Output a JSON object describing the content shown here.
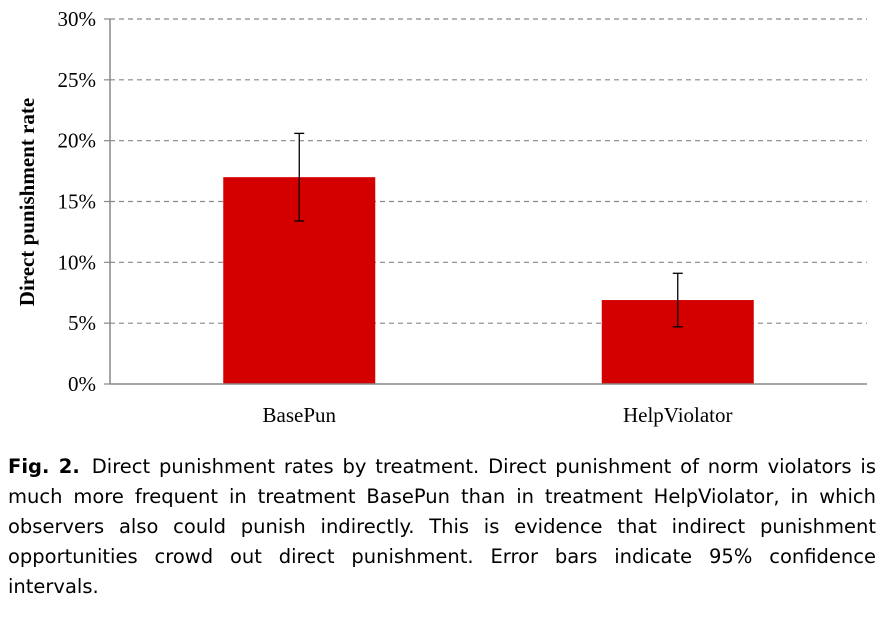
{
  "chart_data": {
    "type": "bar",
    "categories": [
      "BasePun",
      "HelpViolator"
    ],
    "values": [
      17.0,
      6.9
    ],
    "error_low": [
      13.4,
      4.7
    ],
    "error_high": [
      20.6,
      9.1
    ],
    "ylabel": "Direct punishment rate",
    "xlabel": "",
    "ylim": [
      0,
      30
    ],
    "yticks": [
      "0%",
      "5%",
      "10%",
      "15%",
      "20%",
      "25%",
      "30%"
    ],
    "ytick_values": [
      0,
      5,
      10,
      15,
      20,
      25,
      30
    ],
    "grid": true,
    "bar_color": "#D40000",
    "grid_color": "#888888"
  },
  "caption": {
    "label": "Fig. 2.",
    "text": "Direct punishment rates by treatment. Direct punishment of norm violators is much more frequent in treatment BasePun than in treatment HelpViolator, in which observers also could punish indirectly. This is evidence that indirect punishment opportunities crowd out direct punishment. Error bars indicate 95% confidence intervals."
  }
}
